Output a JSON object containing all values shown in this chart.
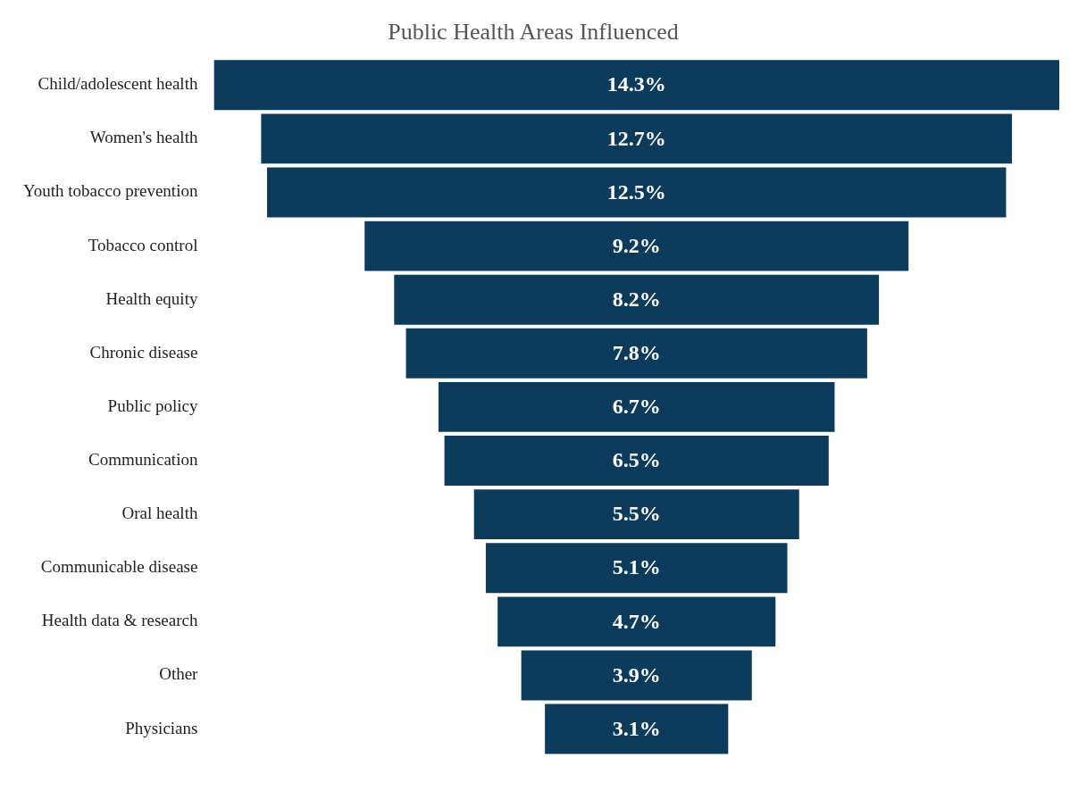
{
  "chart_data": {
    "type": "other",
    "title": "Public Health Areas Influenced",
    "categories": [
      "Child/adolescent health",
      "Women's health",
      "Youth tobacco prevention",
      "Tobacco control",
      "Health equity",
      "Chronic disease",
      "Public policy",
      "Communication",
      "Oral health",
      "Communicable disease",
      "Health data & research",
      "Other",
      "Physicians"
    ],
    "values": [
      14.3,
      12.7,
      12.5,
      9.2,
      8.2,
      7.8,
      6.7,
      6.5,
      5.5,
      5.1,
      4.7,
      3.9,
      3.1
    ],
    "value_labels": [
      "14.3%",
      "12.7%",
      "12.5%",
      "9.2%",
      "8.2%",
      "7.8%",
      "6.7%",
      "6.5%",
      "5.5%",
      "5.1%",
      "4.7%",
      "3.9%",
      "3.1%"
    ],
    "color": "#0d3b5c",
    "legend": false
  }
}
